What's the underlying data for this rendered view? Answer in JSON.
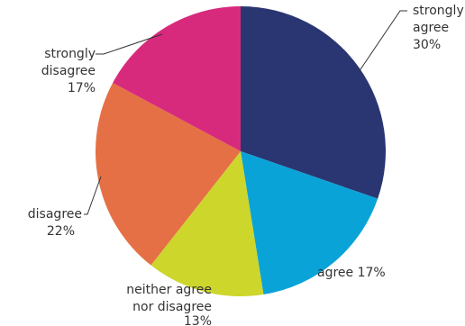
{
  "chart_data": {
    "type": "pie",
    "title": "",
    "slices": [
      {
        "label": "strongly agree",
        "value": 30,
        "value_text": "30%",
        "color": "#2a3672"
      },
      {
        "label": "agree",
        "value": 17,
        "value_text": "17%",
        "color": "#0aa3d8"
      },
      {
        "label": "neither agree nor disagree",
        "value": 13,
        "value_text": "13%",
        "color": "#cdd62b"
      },
      {
        "label": "disagree",
        "value": 22,
        "value_text": "22%",
        "color": "#e57045"
      },
      {
        "label": "strongly disagree",
        "value": 17,
        "value_text": "17%",
        "color": "#d72a7c"
      }
    ],
    "labels": {
      "strongly_agree": [
        "strongly",
        "agree",
        "30%"
      ],
      "agree": [
        "agree 17%"
      ],
      "neither": [
        "neither agree",
        "nor disagree",
        "13%"
      ],
      "disagree": [
        "disagree",
        "22%"
      ],
      "strongly_disagree": [
        "strongly",
        "disagree",
        "17%"
      ]
    }
  }
}
